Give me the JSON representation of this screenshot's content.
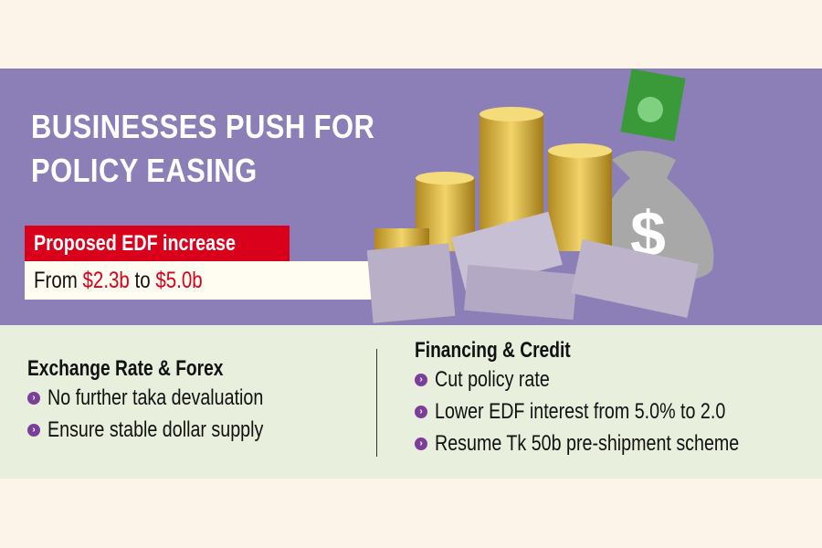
{
  "title": {
    "line1": "BUSINESSES PUSH FOR",
    "line2": "POLICY EASING"
  },
  "edf": {
    "label": "Proposed EDF increase",
    "from_word": "From",
    "from_value": "$2.3b",
    "to_word": "to",
    "to_value": "$5.0b"
  },
  "colors": {
    "banner": "#8c7fb8",
    "accent_red": "#d9001b",
    "bullet": "#7b3f9a",
    "lower_bg": "#e8f0dd"
  },
  "art": {
    "icons": [
      "money-bag-icon",
      "dollar-bill-icon",
      "gold-coins-icon",
      "taka-notes-icon"
    ],
    "bag_symbol": "$"
  },
  "exchange": {
    "heading": "Exchange Rate & Forex",
    "items": [
      "No further taka devaluation",
      "Ensure stable dollar supply"
    ]
  },
  "financing": {
    "heading": "Financing & Credit",
    "items": [
      "Cut policy rate",
      "Lower EDF interest from 5.0% to 2.0",
      "Resume Tk 50b pre-shipment scheme"
    ]
  }
}
